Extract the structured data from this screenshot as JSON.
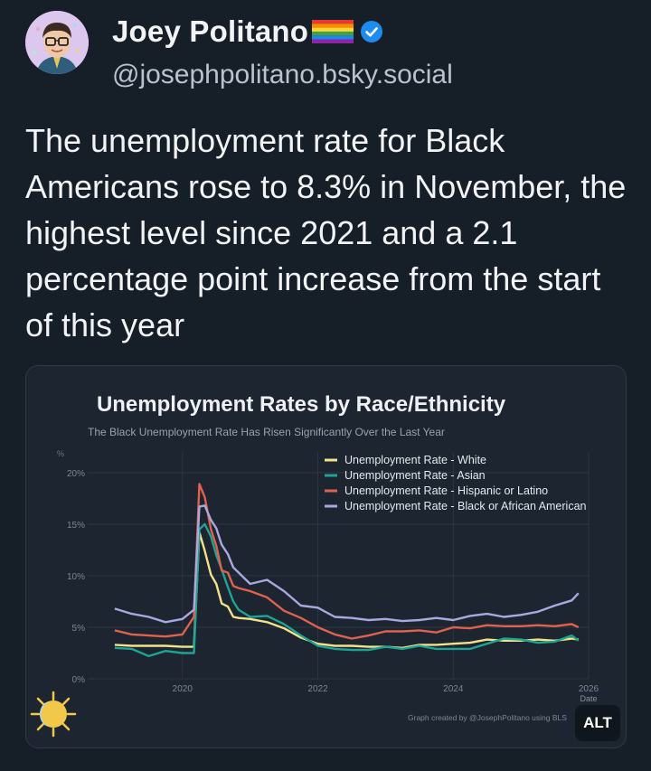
{
  "post": {
    "author_name": "Joey Politano",
    "flag_icon": "rainbow-flag-icon",
    "verified_icon": "verified-check-icon",
    "handle": "@josephpolitano.bsky.social",
    "text": "The unemployment rate for Black Americans rose to 8.3% in November, the highest level since 2021 and a 2.1 percentage point increase from the start of this year",
    "alt_label": "ALT"
  },
  "colors": {
    "background": "#161e27",
    "card": "#1c2530",
    "white": "#f2e38a",
    "asian": "#1fa394",
    "hispanic": "#e0614f",
    "black": "#a9a8e0",
    "verified": "#1d8cf0"
  },
  "chart_data": {
    "type": "line",
    "title": "Unemployment Rates by Race/Ethnicity",
    "subtitle": "The Black Unemployment Rate Has Risen Significantly Over the Last Year",
    "ylabel": "%",
    "xlabel": "Date",
    "xlim": [
      2018.6,
      2026
    ],
    "ylim": [
      0,
      22
    ],
    "yticks": [
      0,
      5,
      10,
      15,
      20
    ],
    "ytick_labels": [
      "0%",
      "5%",
      "10%",
      "15%",
      "20%"
    ],
    "xticks": [
      2020,
      2022,
      2024,
      2026
    ],
    "xtick_labels": [
      "2020",
      "2022",
      "2024",
      "2026"
    ],
    "grid": true,
    "legend_position": "top-right",
    "credit": "Graph created by @JosephPolitano using BLS",
    "series": [
      {
        "name": "Unemployment Rate - White",
        "color": "#f2e38a",
        "x": [
          2019.0,
          2019.25,
          2019.5,
          2019.75,
          2020.0,
          2020.17,
          2020.25,
          2020.33,
          2020.42,
          2020.5,
          2020.58,
          2020.67,
          2020.75,
          2020.83,
          2021.0,
          2021.25,
          2021.5,
          2021.75,
          2022.0,
          2022.25,
          2022.5,
          2022.75,
          2023.0,
          2023.25,
          2023.5,
          2023.75,
          2024.0,
          2024.25,
          2024.5,
          2024.75,
          2025.0,
          2025.25,
          2025.5,
          2025.75,
          2025.85
        ],
        "values": [
          3.3,
          3.2,
          3.2,
          3.2,
          3.1,
          3.1,
          14.2,
          12.4,
          10.1,
          9.2,
          7.3,
          7.0,
          6.0,
          5.9,
          5.8,
          5.5,
          4.9,
          4.0,
          3.4,
          3.2,
          3.2,
          3.1,
          3.1,
          3.0,
          3.3,
          3.3,
          3.4,
          3.5,
          3.8,
          3.7,
          3.7,
          3.8,
          3.7,
          3.9,
          3.8
        ]
      },
      {
        "name": "Unemployment Rate - Asian",
        "color": "#1fa394",
        "x": [
          2019.0,
          2019.25,
          2019.5,
          2019.75,
          2020.0,
          2020.17,
          2020.25,
          2020.33,
          2020.42,
          2020.5,
          2020.58,
          2020.67,
          2020.75,
          2020.83,
          2021.0,
          2021.25,
          2021.5,
          2021.75,
          2022.0,
          2022.25,
          2022.5,
          2022.75,
          2023.0,
          2023.25,
          2023.5,
          2023.75,
          2024.0,
          2024.25,
          2024.5,
          2024.75,
          2025.0,
          2025.25,
          2025.5,
          2025.75,
          2025.85
        ],
        "values": [
          3.0,
          2.9,
          2.2,
          2.7,
          2.5,
          2.5,
          14.5,
          15.0,
          13.8,
          12.0,
          10.6,
          8.9,
          7.5,
          6.7,
          6.0,
          6.1,
          5.3,
          4.2,
          3.2,
          2.9,
          2.8,
          2.8,
          3.1,
          2.9,
          3.2,
          2.9,
          2.9,
          2.9,
          3.4,
          3.9,
          3.8,
          3.5,
          3.6,
          4.2,
          3.7
        ]
      },
      {
        "name": "Unemployment Rate - Hispanic or Latino",
        "color": "#e0614f",
        "x": [
          2019.0,
          2019.25,
          2019.5,
          2019.75,
          2020.0,
          2020.17,
          2020.25,
          2020.33,
          2020.42,
          2020.5,
          2020.58,
          2020.67,
          2020.75,
          2020.83,
          2021.0,
          2021.25,
          2021.5,
          2021.75,
          2022.0,
          2022.25,
          2022.5,
          2022.75,
          2023.0,
          2023.25,
          2023.5,
          2023.75,
          2024.0,
          2024.25,
          2024.5,
          2024.75,
          2025.0,
          2025.25,
          2025.5,
          2025.75,
          2025.85
        ],
        "values": [
          4.7,
          4.3,
          4.2,
          4.1,
          4.3,
          6.0,
          18.9,
          17.6,
          14.5,
          12.9,
          10.5,
          10.3,
          9.0,
          8.8,
          8.5,
          7.9,
          6.6,
          5.9,
          5.0,
          4.3,
          3.9,
          4.2,
          4.6,
          4.6,
          4.7,
          4.5,
          5.0,
          4.9,
          5.2,
          5.1,
          5.1,
          5.2,
          5.1,
          5.3,
          5.0
        ]
      },
      {
        "name": "Unemployment Rate - Black or African American",
        "color": "#a9a8e0",
        "x": [
          2019.0,
          2019.25,
          2019.5,
          2019.75,
          2020.0,
          2020.17,
          2020.25,
          2020.33,
          2020.42,
          2020.5,
          2020.58,
          2020.67,
          2020.75,
          2020.83,
          2021.0,
          2021.25,
          2021.5,
          2021.75,
          2022.0,
          2022.25,
          2022.5,
          2022.75,
          2023.0,
          2023.25,
          2023.5,
          2023.75,
          2024.0,
          2024.25,
          2024.5,
          2024.75,
          2025.0,
          2025.25,
          2025.5,
          2025.75,
          2025.85
        ],
        "values": [
          6.8,
          6.3,
          6.0,
          5.5,
          5.8,
          6.7,
          16.7,
          16.8,
          15.4,
          14.6,
          13.0,
          12.1,
          10.8,
          10.3,
          9.2,
          9.6,
          8.5,
          7.1,
          6.9,
          6.0,
          5.9,
          5.7,
          5.8,
          5.6,
          5.7,
          5.9,
          5.7,
          6.1,
          6.3,
          6.0,
          6.2,
          6.5,
          7.1,
          7.6,
          8.3
        ]
      }
    ]
  }
}
